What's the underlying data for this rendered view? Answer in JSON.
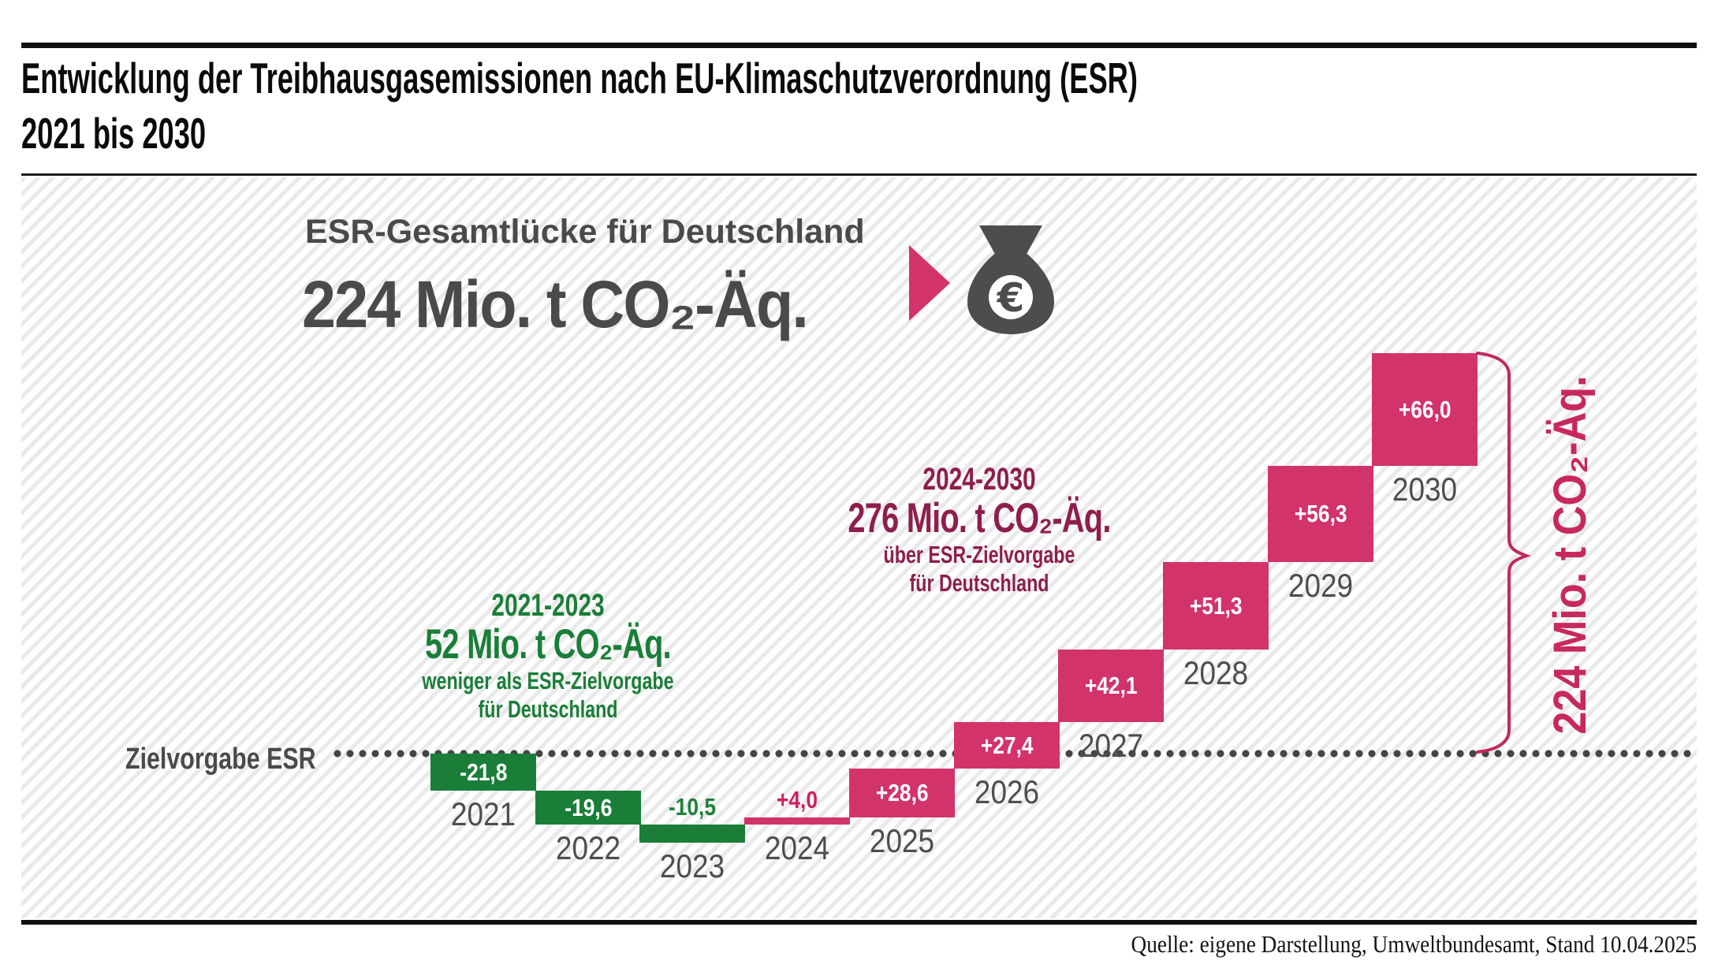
{
  "title": {
    "line1": "Entwicklung der Treibhausgasemissionen nach EU-Klimaschutzverordnung (ESR)",
    "line2": "2021 bis 2030"
  },
  "header": {
    "line1": "ESR-Gesamtlücke für Deutschland",
    "line2": "224 Mio. t CO₂-Äq."
  },
  "icons": {
    "arrow": "arrow-right",
    "money_bag": "money-bag-euro",
    "euro_glyph": "€"
  },
  "annotations": {
    "green": {
      "line1": "2021-2023",
      "line2": "52 Mio. t CO₂-Äq.",
      "line3": "weniger als ESR-Zielvorgabe",
      "line4": "für Deutschland",
      "color": "#1a7e38"
    },
    "magenta": {
      "line1": "2024-2030",
      "line2": "276 Mio. t CO₂-Äq.",
      "line3": "über ESR-Zielvorgabe",
      "line4": "für Deutschland",
      "color": "#8e1e4e"
    }
  },
  "target_line_label": "Zielvorgabe ESR",
  "right_bracket_label": "224 Mio. t CO₂-Äq.",
  "source": "Quelle: eigene Darstellung, Umweltbundesamt, Stand 10.04.2025",
  "colors": {
    "negative_bar": "#1a7e38",
    "positive_bar": "#d2336b",
    "brace": "#c2285e",
    "vertical_label": "#c7295f",
    "header_gray": "#4a4a4a",
    "year_label": "#4b4e50",
    "dotted_line": "#454545",
    "stripe": "#e9e9e9"
  },
  "chart_data": {
    "type": "waterfall",
    "title": "Entwicklung der Treibhausgasemissionen nach EU-Klimaschutzverordnung (ESR) 2021 bis 2030",
    "unit": "Mio. t CO₂-Äq.",
    "baseline_label": "Zielvorgabe ESR",
    "baseline_value": 0,
    "categories": [
      "2021",
      "2022",
      "2023",
      "2024",
      "2025",
      "2026",
      "2027",
      "2028",
      "2029",
      "2030"
    ],
    "values": [
      -21.8,
      -19.6,
      -10.5,
      4.0,
      28.6,
      27.4,
      42.1,
      51.3,
      56.3,
      66.0
    ],
    "value_labels": [
      "-21,8",
      "-19,6",
      "-10,5",
      "+4,0",
      "+28,6",
      "+27,4",
      "+42,1",
      "+51,3",
      "+56,3",
      "+66,0"
    ],
    "negative_color": "#1a7e38",
    "positive_color": "#d2336b",
    "above_label_colors": {
      "negative": "#1e8038",
      "positive": "#ce2060"
    },
    "totals": {
      "below_target_2021_2023": 52,
      "above_target_2024_2030": 276,
      "total_gap": 224
    },
    "legend_position": "none",
    "grid": false
  }
}
